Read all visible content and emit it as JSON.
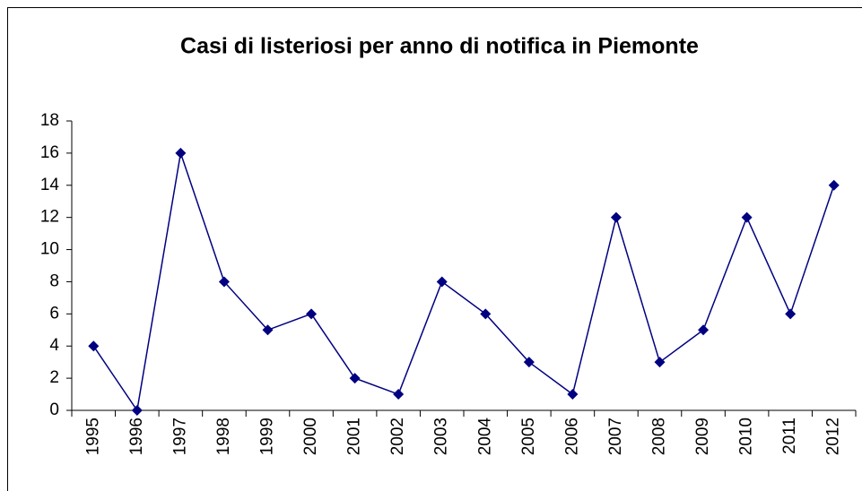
{
  "chart_data": {
    "type": "line",
    "title": "Casi di listeriosi per anno di notifica in Piemonte",
    "categories": [
      "1995",
      "1996",
      "1997",
      "1998",
      "1999",
      "2000",
      "2001",
      "2002",
      "2003",
      "2004",
      "2005",
      "2006",
      "2007",
      "2008",
      "2009",
      "2010",
      "2011",
      "2012"
    ],
    "values": [
      4,
      0,
      16,
      8,
      5,
      6,
      2,
      1,
      8,
      6,
      3,
      1,
      12,
      3,
      5,
      12,
      6,
      14
    ],
    "color": "#000080",
    "ylim": [
      0,
      18
    ],
    "yticks": [
      0,
      2,
      4,
      6,
      8,
      10,
      12,
      14,
      16,
      18
    ],
    "grid": false
  }
}
